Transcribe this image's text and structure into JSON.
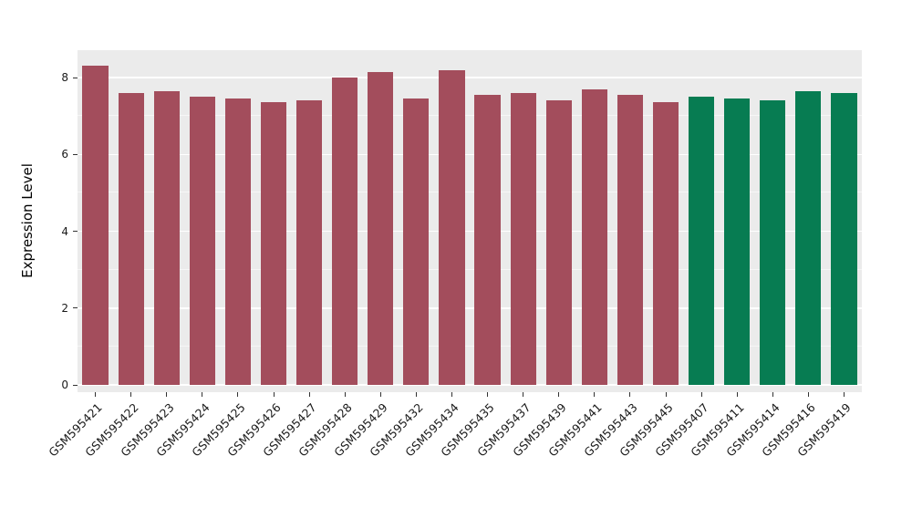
{
  "chart_data": {
    "type": "bar",
    "title": "",
    "xlabel": "",
    "ylabel": "Expression Level",
    "ylim": [
      0,
      8.7
    ],
    "yticks": [
      0,
      2,
      4,
      6,
      8
    ],
    "yticks_minor": [
      1,
      3,
      5,
      7
    ],
    "grid": "on",
    "legend": "none",
    "panel_background": "#EBEBEB",
    "gridline_color": "#FFFFFF",
    "categories": [
      "GSM595421",
      "GSM595422",
      "GSM595423",
      "GSM595424",
      "GSM595425",
      "GSM595426",
      "GSM595427",
      "GSM595428",
      "GSM595429",
      "GSM595432",
      "GSM595434",
      "GSM595435",
      "GSM595437",
      "GSM595439",
      "GSM595441",
      "GSM595443",
      "GSM595445",
      "GSM595407",
      "GSM595411",
      "GSM595414",
      "GSM595416",
      "GSM595419"
    ],
    "values": [
      8.3,
      7.6,
      7.65,
      7.5,
      7.45,
      7.35,
      7.4,
      8.0,
      8.15,
      7.45,
      8.2,
      7.55,
      7.6,
      7.4,
      7.7,
      7.55,
      7.35,
      7.5,
      7.45,
      7.4,
      7.65,
      7.6
    ],
    "groups": [
      "group1",
      "group1",
      "group1",
      "group1",
      "group1",
      "group1",
      "group1",
      "group1",
      "group1",
      "group1",
      "group1",
      "group1",
      "group1",
      "group1",
      "group1",
      "group1",
      "group1",
      "group2",
      "group2",
      "group2",
      "group2",
      "group2"
    ],
    "group_colors": {
      "group1": "#A34D5C",
      "group2": "#077C52"
    }
  }
}
